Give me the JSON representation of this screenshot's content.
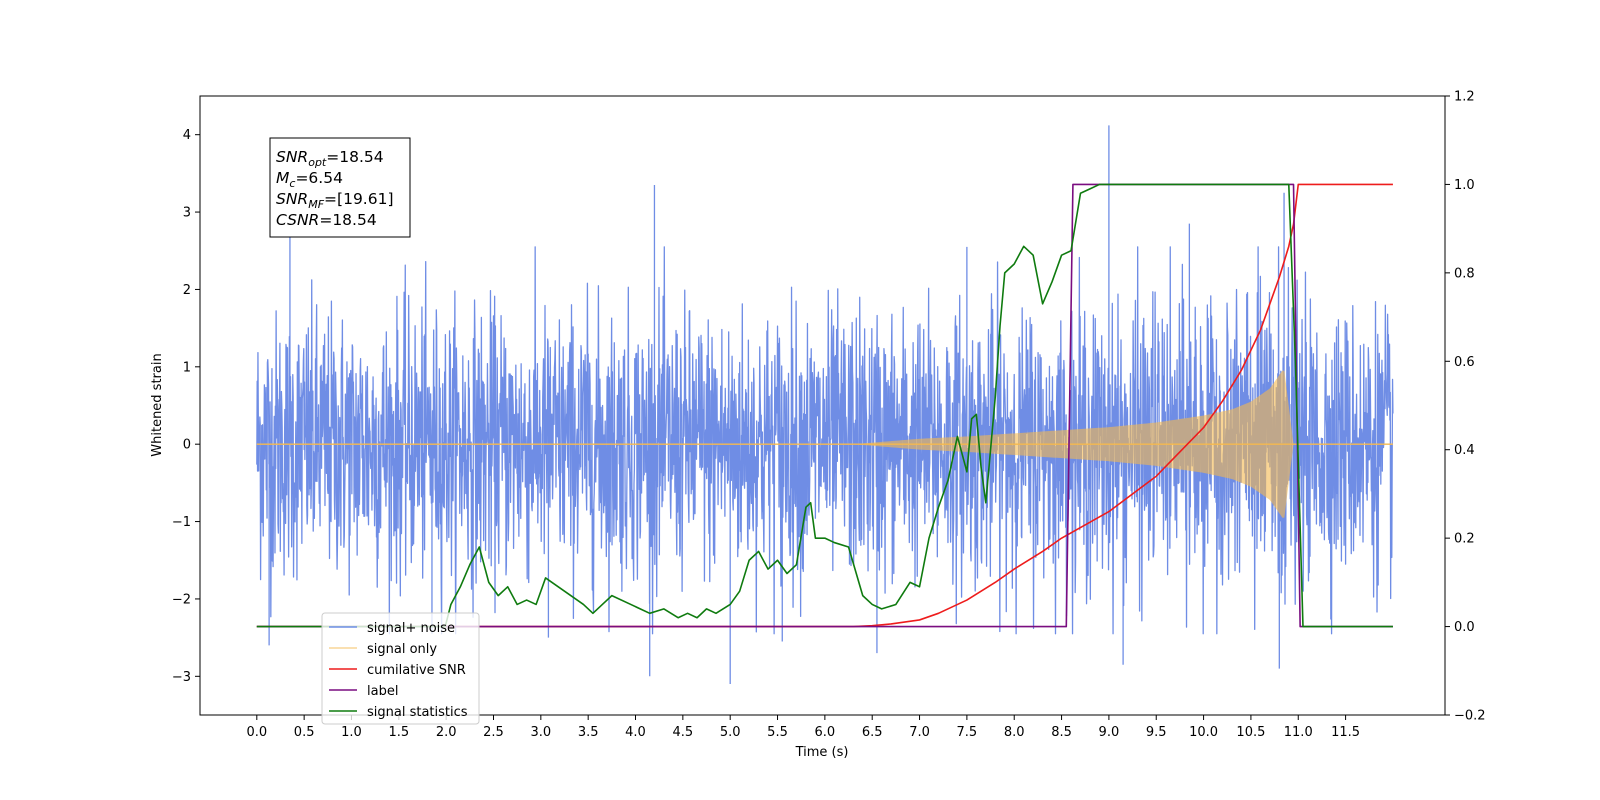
{
  "chart_data": {
    "type": "line",
    "xlabel": "Time (s)",
    "ylabel": "Whitened strain",
    "xlim": [
      -0.6,
      12.55
    ],
    "ylim": [
      -3.5,
      4.5
    ],
    "y2lim": [
      -0.2,
      1.2
    ],
    "x_ticks": [
      0.0,
      0.5,
      1.0,
      1.5,
      2.0,
      2.5,
      3.0,
      3.5,
      4.0,
      4.5,
      5.0,
      5.5,
      6.0,
      6.5,
      7.0,
      7.5,
      8.0,
      8.5,
      9.0,
      9.5,
      10.0,
      10.5,
      11.0,
      11.5
    ],
    "y_ticks": [
      -3,
      -2,
      -1,
      0,
      1,
      2,
      3,
      4
    ],
    "y2_ticks": [
      -0.2,
      0.0,
      0.2,
      0.4,
      0.6,
      0.8,
      1.0,
      1.2
    ],
    "grid": false,
    "legend_position": "lower-left",
    "annotation": {
      "lines": [
        {
          "sym": "SNR",
          "sub": "opt",
          "text": "=18.54"
        },
        {
          "sym": "M",
          "sub": "c",
          "text": "=6.54"
        },
        {
          "sym": "SNR",
          "sub": "MF",
          "text": "=[19.61]"
        },
        {
          "sym": "CSNR",
          "sub": "",
          "text": "=18.54"
        }
      ]
    },
    "series": [
      {
        "name": "signal+ noise",
        "axis": "left",
        "color": "#6f8de5",
        "x_range": [
          0.0,
          12.0
        ],
        "noise_std": 0.85,
        "spikes": [
          [
            0.35,
            2.75
          ],
          [
            0.13,
            -2.6
          ],
          [
            4.2,
            3.35
          ],
          [
            4.15,
            -3.0
          ],
          [
            5.0,
            -3.1
          ],
          [
            9.0,
            4.12
          ],
          [
            9.15,
            -2.85
          ],
          [
            10.85,
            3.25
          ],
          [
            10.8,
            -2.9
          ],
          [
            6.55,
            -2.7
          ],
          [
            3.08,
            -2.5
          ],
          [
            1.85,
            -2.45
          ],
          [
            5.55,
            -2.55
          ],
          [
            7.5,
            2.55
          ],
          [
            9.85,
            2.85
          ]
        ]
      },
      {
        "name": "signal only",
        "axis": "left",
        "color": "#f5b94f",
        "chirp_start": 6.3,
        "chirp_end": 10.95,
        "x_range": [
          0.0,
          12.0
        ],
        "envelope": [
          [
            6.3,
            0.0
          ],
          [
            7.0,
            0.07
          ],
          [
            7.5,
            0.1
          ],
          [
            8.0,
            0.14
          ],
          [
            8.5,
            0.18
          ],
          [
            9.0,
            0.22
          ],
          [
            9.5,
            0.28
          ],
          [
            10.0,
            0.37
          ],
          [
            10.3,
            0.45
          ],
          [
            10.5,
            0.55
          ],
          [
            10.7,
            0.72
          ],
          [
            10.85,
            0.98
          ],
          [
            10.95,
            0.0
          ]
        ]
      },
      {
        "name": "cumilative SNR",
        "axis": "right",
        "color": "#ee1c1c",
        "x": [
          0.0,
          6.3,
          6.5,
          6.7,
          7.0,
          7.2,
          7.5,
          7.8,
          8.0,
          8.3,
          8.5,
          9.0,
          9.5,
          10.0,
          10.2,
          10.4,
          10.6,
          10.7,
          10.8,
          10.9,
          10.95,
          11.0,
          12.0
        ],
        "y": [
          0.0,
          0.0,
          0.002,
          0.006,
          0.015,
          0.03,
          0.06,
          0.1,
          0.13,
          0.17,
          0.2,
          0.26,
          0.34,
          0.45,
          0.51,
          0.58,
          0.67,
          0.73,
          0.79,
          0.86,
          0.91,
          1.0,
          1.0
        ]
      },
      {
        "name": "label",
        "axis": "right",
        "color": "#7a0d80",
        "x": [
          0.0,
          8.55,
          8.62,
          10.95,
          11.02,
          12.0
        ],
        "y": [
          0.0,
          0.0,
          1.0,
          1.0,
          0.0,
          0.0
        ]
      },
      {
        "name": "signal statistics",
        "axis": "right",
        "color": "#0f7b0f",
        "x": [
          0.0,
          1.99,
          2.05,
          2.15,
          2.25,
          2.35,
          2.45,
          2.55,
          2.65,
          2.75,
          2.85,
          2.95,
          3.05,
          3.25,
          3.45,
          3.55,
          3.65,
          3.75,
          3.95,
          4.15,
          4.3,
          4.45,
          4.55,
          4.65,
          4.75,
          4.85,
          5.0,
          5.1,
          5.2,
          5.3,
          5.4,
          5.5,
          5.6,
          5.7,
          5.8,
          5.85,
          5.9,
          6.0,
          6.1,
          6.25,
          6.4,
          6.5,
          6.6,
          6.75,
          6.9,
          7.0,
          7.1,
          7.2,
          7.3,
          7.4,
          7.5,
          7.55,
          7.6,
          7.65,
          7.7,
          7.8,
          7.85,
          7.9,
          8.0,
          8.1,
          8.2,
          8.3,
          8.4,
          8.5,
          8.6,
          8.7,
          8.8,
          8.9,
          9.0,
          9.2,
          9.4,
          10.9,
          10.97,
          11.05,
          12.0
        ],
        "y": [
          0.0,
          0.0,
          0.05,
          0.09,
          0.14,
          0.18,
          0.1,
          0.07,
          0.09,
          0.05,
          0.06,
          0.05,
          0.11,
          0.08,
          0.05,
          0.03,
          0.05,
          0.07,
          0.05,
          0.03,
          0.04,
          0.02,
          0.03,
          0.02,
          0.04,
          0.03,
          0.05,
          0.08,
          0.15,
          0.17,
          0.13,
          0.15,
          0.12,
          0.14,
          0.27,
          0.28,
          0.2,
          0.2,
          0.19,
          0.18,
          0.07,
          0.05,
          0.04,
          0.05,
          0.1,
          0.09,
          0.2,
          0.27,
          0.33,
          0.43,
          0.35,
          0.47,
          0.48,
          0.36,
          0.28,
          0.52,
          0.68,
          0.8,
          0.82,
          0.86,
          0.84,
          0.73,
          0.78,
          0.84,
          0.85,
          0.98,
          0.99,
          1.0,
          1.0,
          1.0,
          1.0,
          1.0,
          0.6,
          0.0,
          0.0
        ]
      }
    ]
  }
}
